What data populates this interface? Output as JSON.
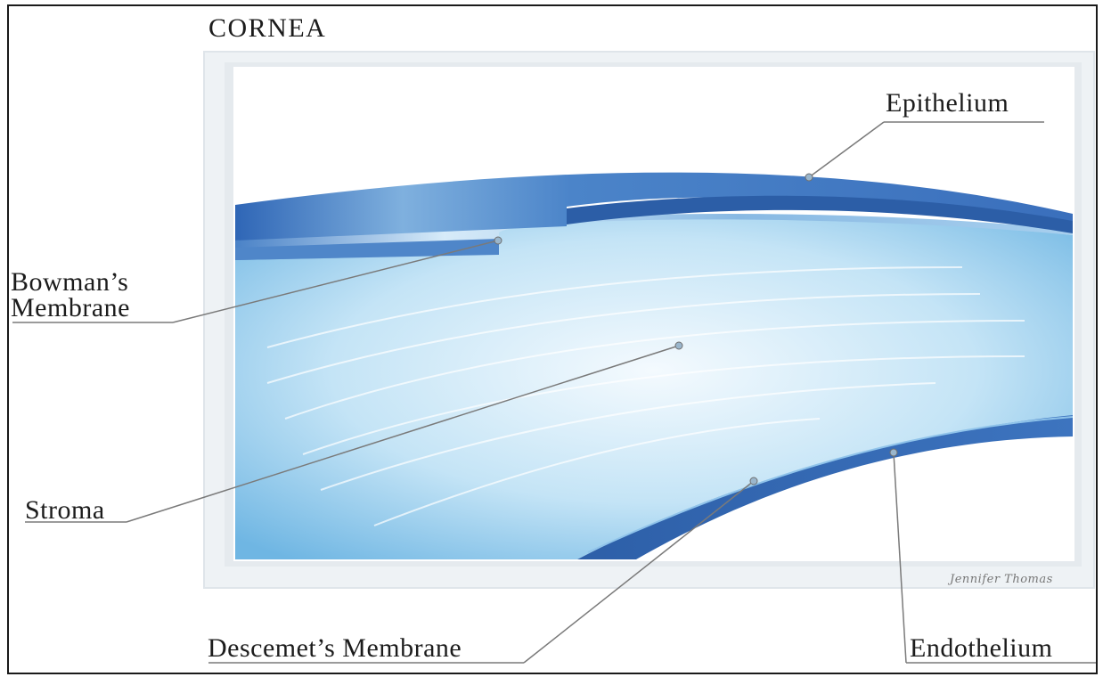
{
  "title": "CORNEA",
  "labels": {
    "epithelium": "Epithelium",
    "bowmans_line1": "Bowman’s",
    "bowmans_line2": "Membrane",
    "stroma": "Stroma",
    "descemets": "Descemet’s Membrane",
    "endothelium": "Endothelium"
  },
  "signature": "Jennifer Thomas",
  "colors": {
    "frame": "#e6ecf1",
    "layer_dark": "#2e63b0",
    "layer_mid": "#4f86c9",
    "stroma_light": "#eef7fd",
    "stroma_edge": "#6fb6e3",
    "leader_line": "#7a7a7a"
  }
}
